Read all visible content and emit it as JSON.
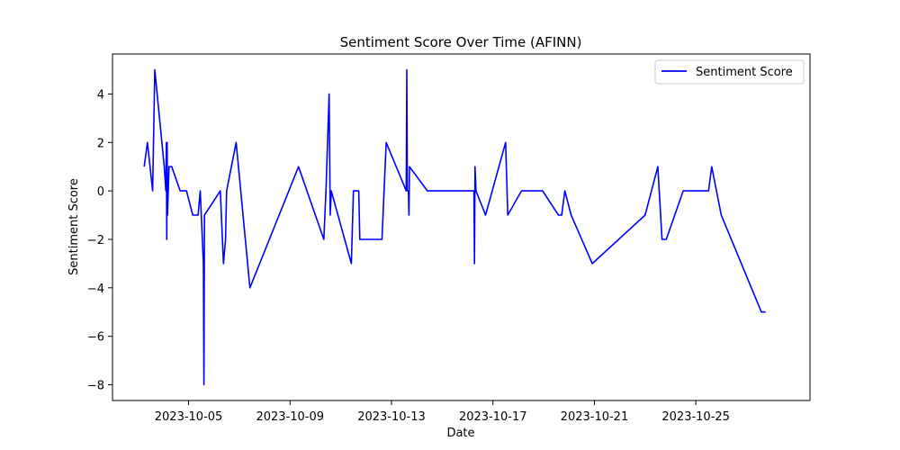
{
  "chart_data": {
    "type": "line",
    "title": "Sentiment Score Over Time (AFINN)",
    "xlabel": "Date",
    "ylabel": "Sentiment Score",
    "xlim": [
      "2023-10-02T00:00:00",
      "2023-10-29T12:00:00"
    ],
    "ylim": [
      -8.65,
      5.65
    ],
    "x_ticks": [
      "2023-10-05",
      "2023-10-09",
      "2023-10-13",
      "2023-10-17",
      "2023-10-21",
      "2023-10-25"
    ],
    "y_ticks": [
      4,
      2,
      0,
      -2,
      -4,
      -6,
      -8
    ],
    "y_tick_labels": [
      "4",
      "2",
      "0",
      "−2",
      "−4",
      "−6",
      "−8"
    ],
    "grid": false,
    "legend": {
      "placement": "upper-right"
    },
    "series": [
      {
        "name": "Sentiment Score",
        "color": "#0000ff",
        "points": [
          [
            "2023-10-03T06:00:00",
            1
          ],
          [
            "2023-10-03T09:00:00",
            2
          ],
          [
            "2023-10-03T14:00:00",
            0
          ],
          [
            "2023-10-03T16:00:00",
            5
          ],
          [
            "2023-10-04T01:00:00",
            1
          ],
          [
            "2023-10-04T02:30:00",
            0
          ],
          [
            "2023-10-04T03:00:00",
            2
          ],
          [
            "2023-10-04T03:20:00",
            -2
          ],
          [
            "2023-10-04T03:40:00",
            2
          ],
          [
            "2023-10-04T04:00:00",
            -1
          ],
          [
            "2023-10-04T05:30:00",
            1
          ],
          [
            "2023-10-04T08:00:00",
            1
          ],
          [
            "2023-10-04T16:00:00",
            0
          ],
          [
            "2023-10-04T22:00:00",
            0
          ],
          [
            "2023-10-05T04:00:00",
            -1
          ],
          [
            "2023-10-05T09:00:00",
            -1
          ],
          [
            "2023-10-05T11:00:00",
            0
          ],
          [
            "2023-10-05T14:00:00",
            -3
          ],
          [
            "2023-10-05T14:30:00",
            -8
          ],
          [
            "2023-10-05T15:00:00",
            -1
          ],
          [
            "2023-10-06T06:00:00",
            0
          ],
          [
            "2023-10-06T09:00:00",
            -3
          ],
          [
            "2023-10-06T11:00:00",
            -2
          ],
          [
            "2023-10-06T12:00:00",
            0
          ],
          [
            "2023-10-06T21:00:00",
            2
          ],
          [
            "2023-10-07T10:00:00",
            -4
          ],
          [
            "2023-10-09T08:00:00",
            1
          ],
          [
            "2023-10-10T08:00:00",
            -2
          ],
          [
            "2023-10-10T10:00:00",
            0
          ],
          [
            "2023-10-10T13:00:00",
            4
          ],
          [
            "2023-10-10T14:00:00",
            -1
          ],
          [
            "2023-10-10T15:00:00",
            0
          ],
          [
            "2023-10-11T10:00:00",
            -3
          ],
          [
            "2023-10-11T12:00:00",
            0
          ],
          [
            "2023-10-11T17:00:00",
            0
          ],
          [
            "2023-10-11T18:00:00",
            -2
          ],
          [
            "2023-10-12T15:00:00",
            -2
          ],
          [
            "2023-10-12T19:00:00",
            2
          ],
          [
            "2023-10-13T14:00:00",
            0
          ],
          [
            "2023-10-13T14:30:00",
            5
          ],
          [
            "2023-10-13T15:00:00",
            0
          ],
          [
            "2023-10-13T16:00:00",
            0
          ],
          [
            "2023-10-13T16:30:00",
            -1
          ],
          [
            "2023-10-13T17:00:00",
            1
          ],
          [
            "2023-10-14T10:00:00",
            0
          ],
          [
            "2023-10-16T06:00:00",
            0
          ],
          [
            "2023-10-16T06:30:00",
            -3
          ],
          [
            "2023-10-16T07:00:00",
            1
          ],
          [
            "2023-10-16T08:00:00",
            0
          ],
          [
            "2023-10-16T17:00:00",
            -1
          ],
          [
            "2023-10-17T12:00:00",
            2
          ],
          [
            "2023-10-17T14:00:00",
            -1
          ],
          [
            "2023-10-18T03:00:00",
            0
          ],
          [
            "2023-10-18T23:00:00",
            0
          ],
          [
            "2023-10-19T14:00:00",
            -1
          ],
          [
            "2023-10-19T17:00:00",
            -1
          ],
          [
            "2023-10-19T20:00:00",
            0
          ],
          [
            "2023-10-20T02:00:00",
            -1
          ],
          [
            "2023-10-20T22:00:00",
            -3
          ],
          [
            "2023-10-23T00:00:00",
            -1
          ],
          [
            "2023-10-23T12:00:00",
            1
          ],
          [
            "2023-10-23T16:00:00",
            -2
          ],
          [
            "2023-10-23T20:00:00",
            -2
          ],
          [
            "2023-10-24T12:00:00",
            0
          ],
          [
            "2023-10-25T12:00:00",
            0
          ],
          [
            "2023-10-25T15:00:00",
            1
          ],
          [
            "2023-10-26T00:00:00",
            -1
          ],
          [
            "2023-10-27T14:00:00",
            -5
          ],
          [
            "2023-10-27T18:00:00",
            -5
          ]
        ]
      }
    ]
  }
}
